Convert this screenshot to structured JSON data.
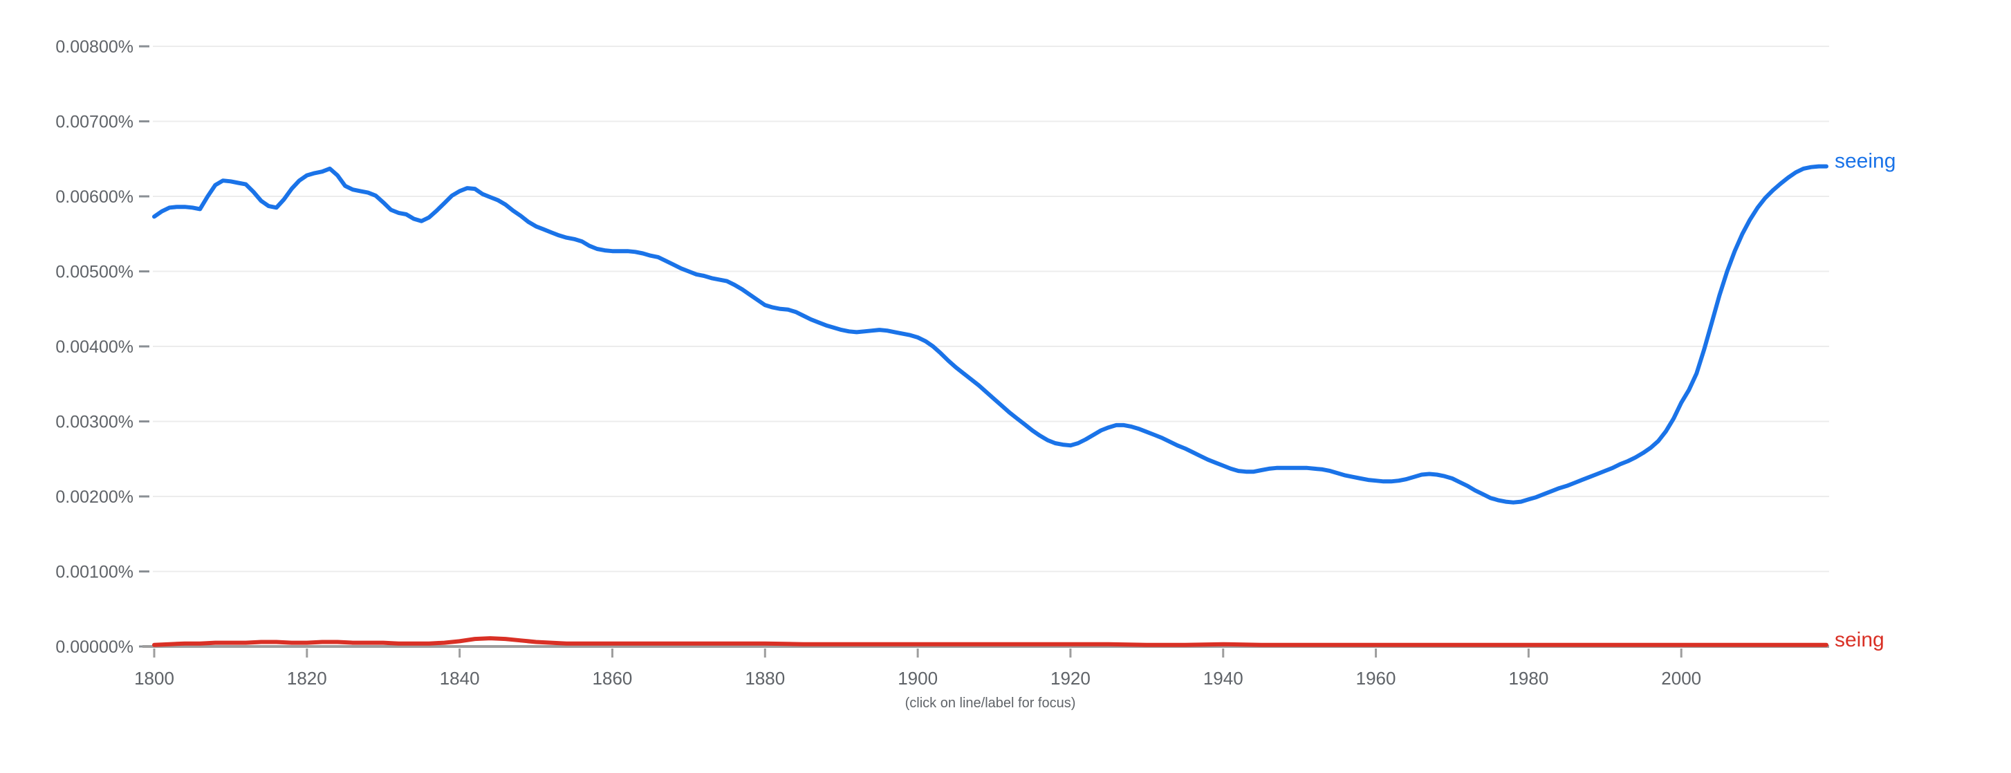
{
  "caption": "(click on line/label for focus)",
  "colors": {
    "seeing_line": "#1a73e8",
    "seing_line": "#d93025",
    "axis_line": "#9e9e9e",
    "tick_dash": "#8a8f94",
    "tick_text": "#5f6368",
    "gridline": "#ececec",
    "background": "#ffffff"
  },
  "chart_data": {
    "type": "line",
    "title": "",
    "xlabel": "",
    "ylabel": "",
    "grid": "horizontal",
    "legend": "inline-right-labels",
    "x_axis": {
      "range": [
        1800,
        2019
      ],
      "tick_years": [
        1800,
        1820,
        1840,
        1860,
        1880,
        1900,
        1920,
        1940,
        1960,
        1980,
        2000
      ]
    },
    "y_axis": {
      "range_percent": [
        0,
        0.008
      ],
      "tick_step_percent": 0.001,
      "tick_labels": [
        "0.00000%",
        "0.00100%",
        "0.00200%",
        "0.00300%",
        "0.00400%",
        "0.00500%",
        "0.00600%",
        "0.00700%",
        "0.00800%"
      ]
    },
    "series": [
      {
        "name": "seeing",
        "color": "#1a73e8",
        "points": [
          [
            1800,
            0.00573
          ],
          [
            1801,
            0.0058
          ],
          [
            1802,
            0.00585
          ],
          [
            1803,
            0.00586
          ],
          [
            1804,
            0.00586
          ],
          [
            1805,
            0.00585
          ],
          [
            1806,
            0.00583
          ],
          [
            1807,
            0.006
          ],
          [
            1808,
            0.00615
          ],
          [
            1809,
            0.00621
          ],
          [
            1810,
            0.0062
          ],
          [
            1811,
            0.00618
          ],
          [
            1812,
            0.00616
          ],
          [
            1813,
            0.00606
          ],
          [
            1814,
            0.00594
          ],
          [
            1815,
            0.00587
          ],
          [
            1816,
            0.00585
          ],
          [
            1817,
            0.00596
          ],
          [
            1818,
            0.0061
          ],
          [
            1819,
            0.00621
          ],
          [
            1820,
            0.00628
          ],
          [
            1821,
            0.00631
          ],
          [
            1822,
            0.00633
          ],
          [
            1823,
            0.00637
          ],
          [
            1824,
            0.00628
          ],
          [
            1825,
            0.00614
          ],
          [
            1826,
            0.00609
          ],
          [
            1827,
            0.00607
          ],
          [
            1828,
            0.00605
          ],
          [
            1829,
            0.00601
          ],
          [
            1830,
            0.00592
          ],
          [
            1831,
            0.00582
          ],
          [
            1832,
            0.00578
          ],
          [
            1833,
            0.00576
          ],
          [
            1834,
            0.0057
          ],
          [
            1835,
            0.00567
          ],
          [
            1836,
            0.00572
          ],
          [
            1837,
            0.00581
          ],
          [
            1838,
            0.00591
          ],
          [
            1839,
            0.00601
          ],
          [
            1840,
            0.00607
          ],
          [
            1841,
            0.00611
          ],
          [
            1842,
            0.0061
          ],
          [
            1843,
            0.00603
          ],
          [
            1844,
            0.00599
          ],
          [
            1845,
            0.00595
          ],
          [
            1846,
            0.00589
          ],
          [
            1847,
            0.00581
          ],
          [
            1848,
            0.00574
          ],
          [
            1849,
            0.00566
          ],
          [
            1850,
            0.0056
          ],
          [
            1851,
            0.00556
          ],
          [
            1852,
            0.00552
          ],
          [
            1853,
            0.00548
          ],
          [
            1854,
            0.00545
          ],
          [
            1855,
            0.00543
          ],
          [
            1856,
            0.0054
          ],
          [
            1857,
            0.00534
          ],
          [
            1858,
            0.0053
          ],
          [
            1859,
            0.00528
          ],
          [
            1860,
            0.00527
          ],
          [
            1861,
            0.00527
          ],
          [
            1862,
            0.00527
          ],
          [
            1863,
            0.00526
          ],
          [
            1864,
            0.00524
          ],
          [
            1865,
            0.00521
          ],
          [
            1866,
            0.00519
          ],
          [
            1867,
            0.00514
          ],
          [
            1868,
            0.00509
          ],
          [
            1869,
            0.00504
          ],
          [
            1870,
            0.005
          ],
          [
            1871,
            0.00496
          ],
          [
            1872,
            0.00494
          ],
          [
            1873,
            0.00491
          ],
          [
            1874,
            0.00489
          ],
          [
            1875,
            0.00487
          ],
          [
            1876,
            0.00482
          ],
          [
            1877,
            0.00476
          ],
          [
            1878,
            0.00469
          ],
          [
            1879,
            0.00462
          ],
          [
            1880,
            0.00455
          ],
          [
            1881,
            0.00452
          ],
          [
            1882,
            0.0045
          ],
          [
            1883,
            0.00449
          ],
          [
            1884,
            0.00446
          ],
          [
            1885,
            0.00441
          ],
          [
            1886,
            0.00436
          ],
          [
            1887,
            0.00432
          ],
          [
            1888,
            0.00428
          ],
          [
            1889,
            0.00425
          ],
          [
            1890,
            0.00422
          ],
          [
            1891,
            0.0042
          ],
          [
            1892,
            0.00419
          ],
          [
            1893,
            0.0042
          ],
          [
            1894,
            0.00421
          ],
          [
            1895,
            0.00422
          ],
          [
            1896,
            0.00421
          ],
          [
            1897,
            0.00419
          ],
          [
            1898,
            0.00417
          ],
          [
            1899,
            0.00415
          ],
          [
            1900,
            0.00412
          ],
          [
            1901,
            0.00407
          ],
          [
            1902,
            0.004
          ],
          [
            1903,
            0.00391
          ],
          [
            1904,
            0.00381
          ],
          [
            1905,
            0.00372
          ],
          [
            1906,
            0.00364
          ],
          [
            1907,
            0.00356
          ],
          [
            1908,
            0.00348
          ],
          [
            1909,
            0.00339
          ],
          [
            1910,
            0.0033
          ],
          [
            1911,
            0.00321
          ],
          [
            1912,
            0.00312
          ],
          [
            1913,
            0.00304
          ],
          [
            1914,
            0.00296
          ],
          [
            1915,
            0.00288
          ],
          [
            1916,
            0.00281
          ],
          [
            1917,
            0.00275
          ],
          [
            1918,
            0.00271
          ],
          [
            1919,
            0.00269
          ],
          [
            1920,
            0.00268
          ],
          [
            1921,
            0.00271
          ],
          [
            1922,
            0.00276
          ],
          [
            1923,
            0.00282
          ],
          [
            1924,
            0.00288
          ],
          [
            1925,
            0.00292
          ],
          [
            1926,
            0.00295
          ],
          [
            1927,
            0.00295
          ],
          [
            1928,
            0.00293
          ],
          [
            1929,
            0.0029
          ],
          [
            1930,
            0.00286
          ],
          [
            1931,
            0.00282
          ],
          [
            1932,
            0.00278
          ],
          [
            1933,
            0.00273
          ],
          [
            1934,
            0.00268
          ],
          [
            1935,
            0.00264
          ],
          [
            1936,
            0.00259
          ],
          [
            1937,
            0.00254
          ],
          [
            1938,
            0.00249
          ],
          [
            1939,
            0.00245
          ],
          [
            1940,
            0.00241
          ],
          [
            1941,
            0.00237
          ],
          [
            1942,
            0.00234
          ],
          [
            1943,
            0.00233
          ],
          [
            1944,
            0.00233
          ],
          [
            1945,
            0.00235
          ],
          [
            1946,
            0.00237
          ],
          [
            1947,
            0.00238
          ],
          [
            1948,
            0.00238
          ],
          [
            1949,
            0.00238
          ],
          [
            1950,
            0.00238
          ],
          [
            1951,
            0.00238
          ],
          [
            1952,
            0.00237
          ],
          [
            1953,
            0.00236
          ],
          [
            1954,
            0.00234
          ],
          [
            1955,
            0.00231
          ],
          [
            1956,
            0.00228
          ],
          [
            1957,
            0.00226
          ],
          [
            1958,
            0.00224
          ],
          [
            1959,
            0.00222
          ],
          [
            1960,
            0.00221
          ],
          [
            1961,
            0.0022
          ],
          [
            1962,
            0.0022
          ],
          [
            1963,
            0.00221
          ],
          [
            1964,
            0.00223
          ],
          [
            1965,
            0.00226
          ],
          [
            1966,
            0.00229
          ],
          [
            1967,
            0.0023
          ],
          [
            1968,
            0.00229
          ],
          [
            1969,
            0.00227
          ],
          [
            1970,
            0.00224
          ],
          [
            1971,
            0.00219
          ],
          [
            1972,
            0.00214
          ],
          [
            1973,
            0.00208
          ],
          [
            1974,
            0.00203
          ],
          [
            1975,
            0.00198
          ],
          [
            1976,
            0.00195
          ],
          [
            1977,
            0.00193
          ],
          [
            1978,
            0.00192
          ],
          [
            1979,
            0.00193
          ],
          [
            1980,
            0.00196
          ],
          [
            1981,
            0.00199
          ],
          [
            1982,
            0.00203
          ],
          [
            1983,
            0.00207
          ],
          [
            1984,
            0.00211
          ],
          [
            1985,
            0.00214
          ],
          [
            1986,
            0.00218
          ],
          [
            1987,
            0.00222
          ],
          [
            1988,
            0.00226
          ],
          [
            1989,
            0.0023
          ],
          [
            1990,
            0.00234
          ],
          [
            1991,
            0.00238
          ],
          [
            1992,
            0.00243
          ],
          [
            1993,
            0.00247
          ],
          [
            1994,
            0.00252
          ],
          [
            1995,
            0.00258
          ],
          [
            1996,
            0.00265
          ],
          [
            1997,
            0.00274
          ],
          [
            1998,
            0.00287
          ],
          [
            1999,
            0.00304
          ],
          [
            2000,
            0.00325
          ],
          [
            2001,
            0.00342
          ],
          [
            2002,
            0.00364
          ],
          [
            2003,
            0.00396
          ],
          [
            2004,
            0.00432
          ],
          [
            2005,
            0.00468
          ],
          [
            2006,
            0.005
          ],
          [
            2007,
            0.00527
          ],
          [
            2008,
            0.0055
          ],
          [
            2009,
            0.00569
          ],
          [
            2010,
            0.00585
          ],
          [
            2011,
            0.00598
          ],
          [
            2012,
            0.00608
          ],
          [
            2013,
            0.00617
          ],
          [
            2014,
            0.00625
          ],
          [
            2015,
            0.00632
          ],
          [
            2016,
            0.00637
          ],
          [
            2017,
            0.00639
          ],
          [
            2018,
            0.0064
          ],
          [
            2019,
            0.0064
          ]
        ]
      },
      {
        "name": "seing",
        "color": "#d93025",
        "points": [
          [
            1800,
            2e-05
          ],
          [
            1802,
            3e-05
          ],
          [
            1804,
            4e-05
          ],
          [
            1806,
            4e-05
          ],
          [
            1808,
            5e-05
          ],
          [
            1810,
            5e-05
          ],
          [
            1812,
            5e-05
          ],
          [
            1814,
            6e-05
          ],
          [
            1816,
            6e-05
          ],
          [
            1818,
            5e-05
          ],
          [
            1820,
            5e-05
          ],
          [
            1822,
            6e-05
          ],
          [
            1824,
            6e-05
          ],
          [
            1826,
            5e-05
          ],
          [
            1828,
            5e-05
          ],
          [
            1830,
            5e-05
          ],
          [
            1832,
            4e-05
          ],
          [
            1834,
            4e-05
          ],
          [
            1836,
            4e-05
          ],
          [
            1838,
            5e-05
          ],
          [
            1840,
            7e-05
          ],
          [
            1842,
            0.0001
          ],
          [
            1844,
            0.00011
          ],
          [
            1846,
            0.0001
          ],
          [
            1848,
            8e-05
          ],
          [
            1850,
            6e-05
          ],
          [
            1852,
            5e-05
          ],
          [
            1854,
            4e-05
          ],
          [
            1856,
            4e-05
          ],
          [
            1858,
            4e-05
          ],
          [
            1860,
            4e-05
          ],
          [
            1865,
            4e-05
          ],
          [
            1870,
            4e-05
          ],
          [
            1875,
            4e-05
          ],
          [
            1880,
            4e-05
          ],
          [
            1885,
            3e-05
          ],
          [
            1890,
            3e-05
          ],
          [
            1895,
            3e-05
          ],
          [
            1900,
            3e-05
          ],
          [
            1905,
            3e-05
          ],
          [
            1910,
            3e-05
          ],
          [
            1915,
            3e-05
          ],
          [
            1920,
            3e-05
          ],
          [
            1925,
            3e-05
          ],
          [
            1930,
            2e-05
          ],
          [
            1935,
            2e-05
          ],
          [
            1940,
            3e-05
          ],
          [
            1945,
            2e-05
          ],
          [
            1950,
            2e-05
          ],
          [
            1955,
            2e-05
          ],
          [
            1960,
            2e-05
          ],
          [
            1965,
            2e-05
          ],
          [
            1970,
            2e-05
          ],
          [
            1975,
            2e-05
          ],
          [
            1980,
            2e-05
          ],
          [
            1985,
            2e-05
          ],
          [
            1990,
            2e-05
          ],
          [
            1995,
            2e-05
          ],
          [
            2000,
            2e-05
          ],
          [
            2005,
            2e-05
          ],
          [
            2010,
            2e-05
          ],
          [
            2015,
            2e-05
          ],
          [
            2019,
            2e-05
          ]
        ]
      }
    ]
  }
}
